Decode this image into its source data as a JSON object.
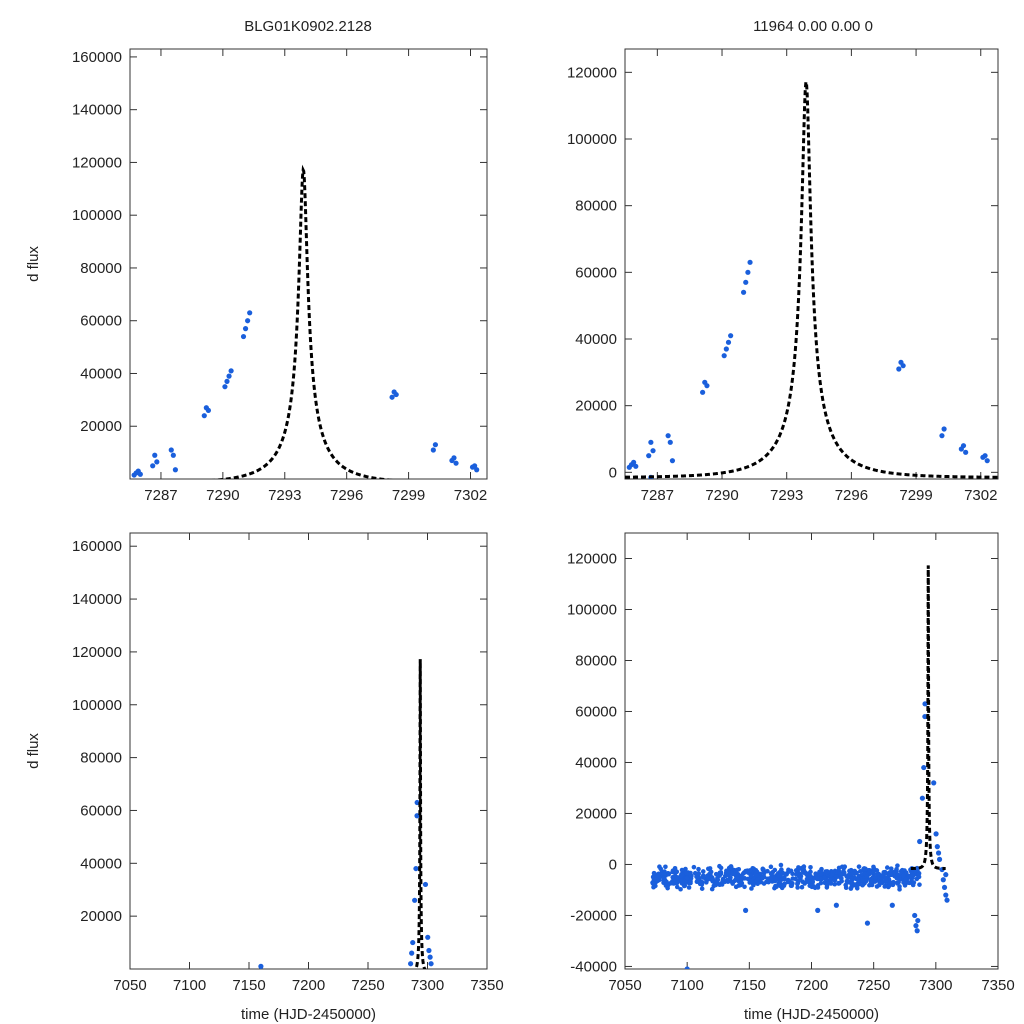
{
  "figure": {
    "title_left": "BLG01K0902.2128",
    "title_right": "11964  0.00  0.00  0",
    "model_color": "#000000",
    "data_color": "#1a5fdc"
  },
  "chart_data": [
    {
      "type": "scatter",
      "panel": "top-left",
      "xlabel": "",
      "ylabel": "d flux",
      "xlim": [
        7285.5,
        7302.8
      ],
      "ylim": [
        0,
        163000
      ],
      "xticks": [
        7287,
        7290,
        7293,
        7296,
        7299,
        7302
      ],
      "yticks": [
        20000,
        40000,
        60000,
        80000,
        100000,
        120000,
        140000,
        160000
      ],
      "model": {
        "t0": 7293.9,
        "tE": 2.8,
        "u0": 0.07,
        "fs": 8930,
        "base": -1600
      },
      "points": [
        [
          7285.7,
          1500
        ],
        [
          7285.8,
          2300
        ],
        [
          7285.9,
          3000
        ],
        [
          7286.0,
          1800
        ],
        [
          7286.6,
          5000
        ],
        [
          7286.7,
          9000
        ],
        [
          7286.8,
          6500
        ],
        [
          7287.5,
          11000
        ],
        [
          7287.6,
          9000
        ],
        [
          7287.7,
          3500
        ],
        [
          7289.1,
          24000
        ],
        [
          7289.2,
          27000
        ],
        [
          7289.3,
          26000
        ],
        [
          7290.1,
          35000
        ],
        [
          7290.2,
          37000
        ],
        [
          7290.3,
          39000
        ],
        [
          7290.4,
          41000
        ],
        [
          7291.0,
          54000
        ],
        [
          7291.1,
          57000
        ],
        [
          7291.2,
          60000
        ],
        [
          7291.3,
          63000
        ],
        [
          7298.2,
          31000
        ],
        [
          7298.3,
          33000
        ],
        [
          7298.4,
          32000
        ],
        [
          7300.2,
          11000
        ],
        [
          7300.3,
          13000
        ],
        [
          7301.1,
          7000
        ],
        [
          7301.2,
          8000
        ],
        [
          7301.3,
          6000
        ],
        [
          7302.1,
          4500
        ],
        [
          7302.2,
          5000
        ],
        [
          7302.3,
          3500
        ]
      ]
    },
    {
      "type": "scatter",
      "panel": "top-right",
      "xlabel": "",
      "ylabel": "",
      "xlim": [
        7285.5,
        7302.8
      ],
      "ylim": [
        -2000,
        127000
      ],
      "xticks": [
        7287,
        7290,
        7293,
        7296,
        7299,
        7302
      ],
      "yticks": [
        0,
        20000,
        40000,
        60000,
        80000,
        100000,
        120000
      ],
      "model": {
        "t0": 7293.9,
        "tE": 2.8,
        "u0": 0.07,
        "fs": 8930,
        "base": -1600
      },
      "points": [
        [
          7285.7,
          1500
        ],
        [
          7285.8,
          2300
        ],
        [
          7285.9,
          3000
        ],
        [
          7286.0,
          1800
        ],
        [
          7286.6,
          5000
        ],
        [
          7286.7,
          9000
        ],
        [
          7286.8,
          6500
        ],
        [
          7286.7,
          -1500
        ],
        [
          7287.5,
          11000
        ],
        [
          7287.6,
          9000
        ],
        [
          7287.7,
          3500
        ],
        [
          7289.1,
          24000
        ],
        [
          7289.2,
          27000
        ],
        [
          7289.3,
          26000
        ],
        [
          7290.1,
          35000
        ],
        [
          7290.2,
          37000
        ],
        [
          7290.3,
          39000
        ],
        [
          7290.4,
          41000
        ],
        [
          7291.0,
          54000
        ],
        [
          7291.1,
          57000
        ],
        [
          7291.2,
          60000
        ],
        [
          7291.3,
          63000
        ],
        [
          7298.2,
          31000
        ],
        [
          7298.3,
          33000
        ],
        [
          7298.4,
          32000
        ],
        [
          7300.2,
          11000
        ],
        [
          7300.3,
          13000
        ],
        [
          7301.1,
          7000
        ],
        [
          7301.2,
          8000
        ],
        [
          7301.3,
          6000
        ],
        [
          7302.1,
          4500
        ],
        [
          7302.2,
          5000
        ],
        [
          7302.3,
          3500
        ]
      ]
    },
    {
      "type": "scatter",
      "panel": "bottom-left",
      "xlabel": "time (HJD-2450000)",
      "ylabel": "d flux",
      "xlim": [
        7050,
        7350
      ],
      "ylim": [
        0,
        165000
      ],
      "xticks": [
        7050,
        7100,
        7150,
        7200,
        7250,
        7300,
        7350
      ],
      "yticks": [
        20000,
        40000,
        60000,
        80000,
        100000,
        120000,
        140000,
        160000
      ],
      "model": {
        "t0": 7293.9,
        "tE": 2.8,
        "u0": 0.07,
        "fs": 8930,
        "base": -1600
      },
      "points": [
        [
          7160,
          1000
        ],
        [
          7285.8,
          2000
        ],
        [
          7286.7,
          6000
        ],
        [
          7287.6,
          10000
        ],
        [
          7289.2,
          26000
        ],
        [
          7290.3,
          38000
        ],
        [
          7291.2,
          58000
        ],
        [
          7291.3,
          63000
        ],
        [
          7298.3,
          32000
        ],
        [
          7300.2,
          12000
        ],
        [
          7301.2,
          7000
        ],
        [
          7302.2,
          4500
        ],
        [
          7303,
          2000
        ]
      ]
    },
    {
      "type": "scatter",
      "panel": "bottom-right",
      "xlabel": "time (HJD-2450000)",
      "ylabel": "",
      "xlim": [
        7050,
        7350
      ],
      "ylim": [
        -41000,
        130000
      ],
      "xticks": [
        7050,
        7100,
        7150,
        7200,
        7250,
        7300,
        7350
      ],
      "yticks": [
        -40000,
        -20000,
        0,
        20000,
        40000,
        60000,
        80000,
        100000,
        120000
      ],
      "model": {
        "t0": 7293.9,
        "tE": 2.8,
        "u0": 0.07,
        "fs": 8930,
        "base": -1600
      },
      "baseline": {
        "x_start": 7072,
        "x_end": 7305,
        "center": -5000,
        "spread": 5000
      },
      "points": [
        [
          7100,
          -41000
        ],
        [
          7147,
          -18000
        ],
        [
          7205,
          -18000
        ],
        [
          7220,
          -16000
        ],
        [
          7245,
          -23000
        ],
        [
          7265,
          -16000
        ],
        [
          7283,
          -20000
        ],
        [
          7284,
          -24000
        ],
        [
          7285,
          -26000
        ],
        [
          7285.5,
          -22000
        ],
        [
          7287,
          9000
        ],
        [
          7289.2,
          26000
        ],
        [
          7290.3,
          38000
        ],
        [
          7291.2,
          58000
        ],
        [
          7291.3,
          63000
        ],
        [
          7298.3,
          32000
        ],
        [
          7300.2,
          12000
        ],
        [
          7301.2,
          7000
        ],
        [
          7302.2,
          4500
        ],
        [
          7303,
          2000
        ],
        [
          7305,
          -2000
        ],
        [
          7306,
          -6000
        ],
        [
          7307,
          -9000
        ],
        [
          7308,
          -12000
        ],
        [
          7309,
          -14000
        ],
        [
          7308,
          -4000
        ]
      ]
    }
  ]
}
